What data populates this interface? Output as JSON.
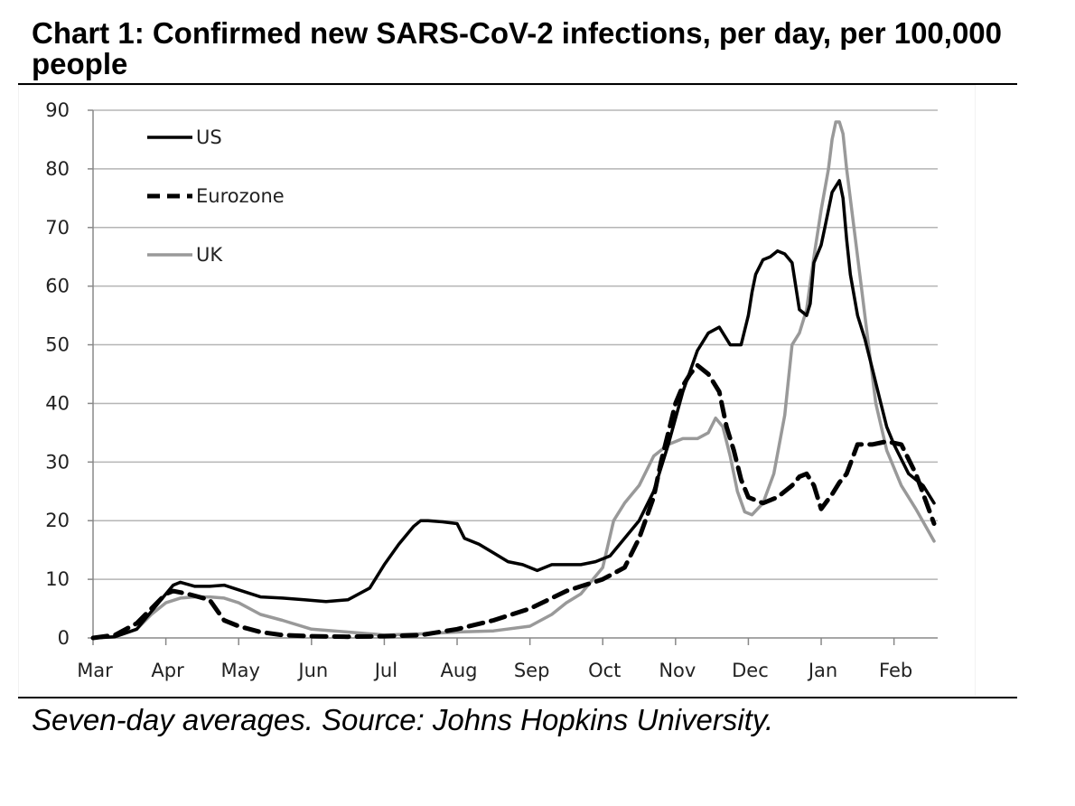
{
  "header": {
    "title": "Chart 1: Confirmed new SARS-CoV-2 infections, per day, per 100,000 people"
  },
  "footer": {
    "source": "Seven-day averages. Source: Johns Hopkins University."
  },
  "chart_data": {
    "type": "line",
    "title": "Chart 1: Confirmed new SARS-CoV-2 infections, per day, per 100,000 people",
    "xlabel": "",
    "ylabel": "",
    "ylim": [
      0,
      90
    ],
    "yticks": [
      0,
      10,
      20,
      30,
      40,
      50,
      60,
      70,
      80,
      90
    ],
    "xticks": [
      "Mar",
      "Apr",
      "May",
      "Jun",
      "Jul",
      "Aug",
      "Sep",
      "Oct",
      "Nov",
      "Dec",
      "Jan",
      "Feb"
    ],
    "x_unit": "months since start of March",
    "xlim": [
      0,
      11.6
    ],
    "grid": true,
    "legend_position": "top-left",
    "series": [
      {
        "name": "US",
        "color": "#000000",
        "style": "solid",
        "x": [
          0,
          0.3,
          0.6,
          0.9,
          1.1,
          1.2,
          1.4,
          1.6,
          1.8,
          2.0,
          2.3,
          2.6,
          2.9,
          3.2,
          3.5,
          3.8,
          4.0,
          4.2,
          4.4,
          4.5,
          4.6,
          4.8,
          5.0,
          5.1,
          5.3,
          5.5,
          5.7,
          5.9,
          6.1,
          6.3,
          6.5,
          6.7,
          6.9,
          7.1,
          7.3,
          7.5,
          7.7,
          7.9,
          8.1,
          8.3,
          8.45,
          8.6,
          8.75,
          8.9,
          9.0,
          9.05,
          9.1,
          9.2,
          9.3,
          9.4,
          9.5,
          9.6,
          9.7,
          9.8,
          9.85,
          9.9,
          10.0,
          10.05,
          10.15,
          10.25,
          10.3,
          10.35,
          10.4,
          10.5,
          10.6,
          10.7,
          10.8,
          10.9,
          11.0,
          11.2,
          11.4,
          11.55
        ],
        "values": [
          0,
          0.2,
          1.5,
          6.0,
          9.0,
          9.5,
          8.8,
          8.8,
          9.0,
          8.2,
          7.0,
          6.8,
          6.5,
          6.2,
          6.5,
          8.5,
          12.5,
          16.0,
          19.0,
          20.0,
          20.0,
          19.8,
          19.5,
          17.0,
          16.0,
          14.5,
          13.0,
          12.5,
          11.5,
          12.5,
          12.5,
          12.5,
          13.0,
          14.0,
          17.0,
          20.0,
          25.0,
          33.0,
          42.0,
          49.0,
          52.0,
          53.0,
          50.0,
          50.0,
          55.0,
          59.0,
          62.0,
          64.5,
          65.0,
          66.0,
          65.5,
          64.0,
          56.0,
          55.0,
          57.0,
          64.0,
          67.0,
          70.0,
          76.0,
          78.0,
          75.0,
          68.0,
          62.0,
          55.0,
          51.0,
          46.0,
          41.0,
          36.0,
          33.0,
          28.0,
          26.0,
          23.0
        ]
      },
      {
        "name": "Eurozone",
        "color": "#000000",
        "style": "dashed",
        "x": [
          0,
          0.3,
          0.6,
          0.8,
          1.0,
          1.1,
          1.3,
          1.6,
          1.8,
          2.0,
          2.3,
          2.6,
          3.0,
          3.5,
          4.0,
          4.5,
          5.0,
          5.5,
          6.0,
          6.5,
          7.0,
          7.3,
          7.5,
          7.7,
          7.8,
          7.9,
          8.0,
          8.1,
          8.2,
          8.3,
          8.45,
          8.6,
          8.7,
          8.8,
          8.9,
          9.0,
          9.2,
          9.4,
          9.6,
          9.7,
          9.8,
          9.9,
          10.0,
          10.15,
          10.25,
          10.35,
          10.5,
          10.7,
          10.9,
          11.1,
          11.3,
          11.55
        ],
        "values": [
          0,
          0.5,
          2.5,
          5.0,
          7.5,
          8.0,
          7.5,
          6.5,
          3.0,
          2.0,
          1.0,
          0.5,
          0.3,
          0.2,
          0.3,
          0.5,
          1.5,
          3.0,
          5.0,
          8.0,
          10.0,
          12.0,
          17.0,
          24.0,
          30.0,
          35.0,
          40.0,
          43.0,
          45.0,
          46.5,
          45.0,
          42.0,
          36.0,
          32.0,
          27.0,
          24.0,
          23.0,
          24.0,
          26.0,
          27.5,
          28.0,
          26.0,
          22.0,
          24.5,
          26.5,
          28.0,
          33.0,
          33.0,
          33.5,
          33.0,
          28.0,
          19.5
        ]
      },
      {
        "name": "UK",
        "color": "#999999",
        "style": "solid",
        "x": [
          0,
          0.3,
          0.6,
          0.8,
          1.0,
          1.2,
          1.4,
          1.6,
          1.8,
          2.0,
          2.3,
          2.6,
          3.0,
          3.5,
          4.0,
          4.5,
          5.0,
          5.5,
          6.0,
          6.3,
          6.5,
          6.7,
          7.0,
          7.15,
          7.3,
          7.5,
          7.7,
          7.9,
          8.1,
          8.3,
          8.45,
          8.55,
          8.65,
          8.75,
          8.85,
          8.95,
          9.05,
          9.2,
          9.35,
          9.5,
          9.6,
          9.7,
          9.8,
          9.9,
          10.0,
          10.1,
          10.15,
          10.2,
          10.25,
          10.3,
          10.35,
          10.45,
          10.55,
          10.65,
          10.75,
          10.9,
          11.1,
          11.3,
          11.55
        ],
        "values": [
          0,
          0.2,
          1.5,
          4.0,
          6.0,
          6.8,
          7.0,
          7.0,
          6.8,
          6.0,
          4.0,
          3.0,
          1.5,
          1.0,
          0.5,
          0.7,
          1.0,
          1.2,
          2.0,
          4.0,
          6.0,
          7.5,
          12.0,
          20.0,
          23.0,
          26.0,
          31.0,
          33.0,
          34.0,
          34.0,
          35.0,
          37.5,
          36.0,
          31.0,
          25.0,
          21.5,
          21.0,
          23.0,
          28.0,
          38.0,
          50.0,
          52.0,
          56.0,
          65.0,
          73.0,
          80.0,
          85.0,
          88.0,
          88.0,
          86.0,
          80.0,
          70.0,
          60.0,
          50.0,
          40.0,
          32.0,
          26.0,
          22.0,
          16.5
        ]
      }
    ]
  }
}
